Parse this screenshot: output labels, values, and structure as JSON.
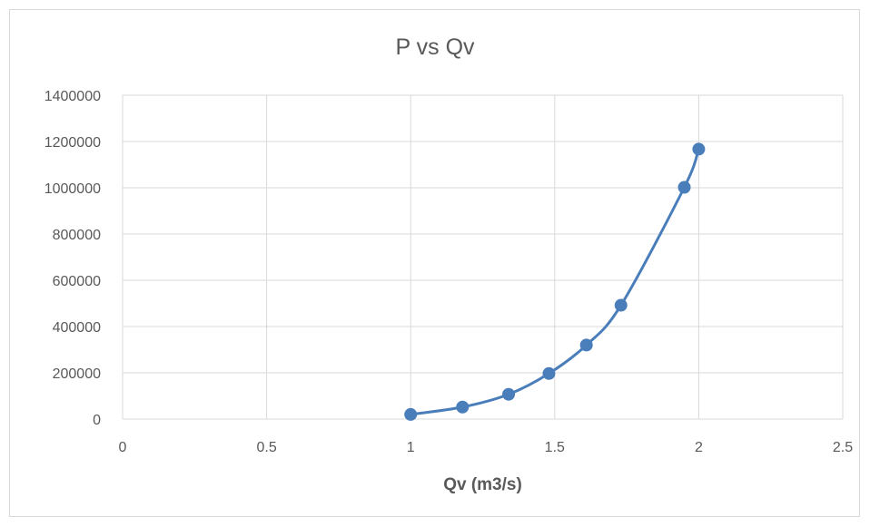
{
  "chart_data": {
    "type": "scatter",
    "title": "P vs Qv",
    "xlabel": "Qv (m3/s)",
    "ylabel": "",
    "xlim": [
      0,
      2.5
    ],
    "ylim": [
      0,
      1400000
    ],
    "x_ticks": [
      0,
      0.5,
      1,
      1.5,
      2,
      2.5
    ],
    "x_tick_labels": [
      "0",
      "0.5",
      "1",
      "1.5",
      "2",
      "2.5"
    ],
    "y_ticks": [
      0,
      200000,
      400000,
      600000,
      800000,
      1000000,
      1200000,
      1400000
    ],
    "y_tick_labels": [
      "0",
      "200000",
      "400000",
      "600000",
      "800000",
      "1000000",
      "1200000",
      "1400000"
    ],
    "grid": true,
    "smooth_line": true,
    "series": [
      {
        "color": "#4a7ebb",
        "x": [
          1.0,
          1.18,
          1.34,
          1.48,
          1.61,
          1.73,
          1.95,
          2.0
        ],
        "y": [
          20000,
          52000,
          107000,
          197000,
          320000,
          492000,
          1002000,
          1167000
        ]
      }
    ]
  }
}
